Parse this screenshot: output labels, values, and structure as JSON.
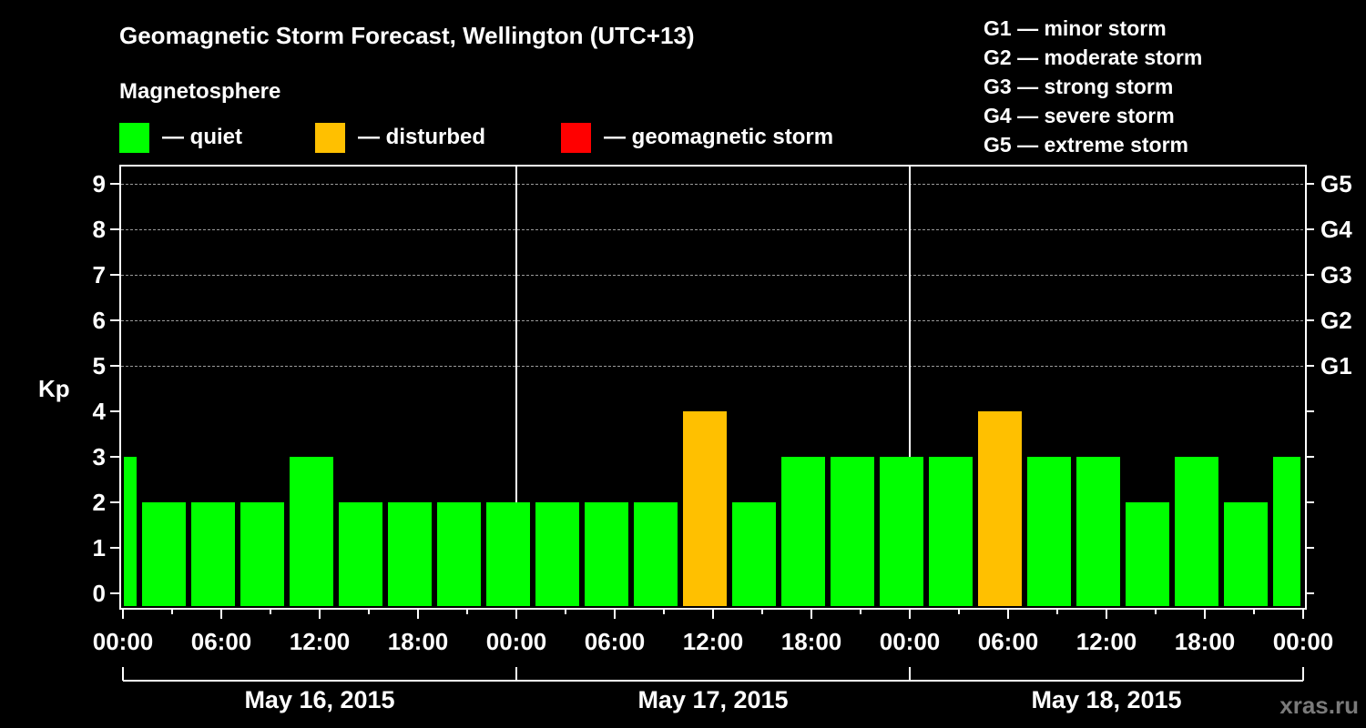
{
  "title": "Geomagnetic Storm Forecast, Wellington (UTC+13)",
  "subtitle": "Magnetosphere",
  "legend": [
    {
      "label": "— quiet",
      "color": "#00ff00",
      "x": 131
    },
    {
      "label": "— disturbed",
      "color": "#ffc000",
      "x": 346
    },
    {
      "label": "— geomagnetic storm",
      "color": "#ff0000",
      "x": 616
    }
  ],
  "g_legend": [
    "G1 — minor storm",
    "G2 — moderate storm",
    "G3 — strong storm",
    "G4 — severe storm",
    "G5 — extreme storm"
  ],
  "y_axis_label": "Kp",
  "watermark": "xras.ru",
  "colors": {
    "quiet": "#00ff00",
    "disturbed": "#ffc000",
    "storm": "#ff0000",
    "background": "#000000",
    "grid": "#9a9a9a"
  },
  "chart_data": {
    "type": "bar",
    "title": "Geomagnetic Storm Forecast, Wellington (UTC+13)",
    "xlabel": "",
    "ylabel": "Kp",
    "ylim": [
      0,
      9
    ],
    "y_ticks": [
      0,
      1,
      2,
      3,
      4,
      5,
      6,
      7,
      8,
      9
    ],
    "right_axis_labels": [
      {
        "kp": 5,
        "label": "G1"
      },
      {
        "kp": 6,
        "label": "G2"
      },
      {
        "kp": 7,
        "label": "G3"
      },
      {
        "kp": 8,
        "label": "G4"
      },
      {
        "kp": 9,
        "label": "G5"
      }
    ],
    "grid": "dashed horizontal lines at Kp 5-9",
    "x_tick_labels": [
      "00:00",
      "06:00",
      "12:00",
      "18:00",
      "00:00",
      "06:00",
      "12:00",
      "18:00",
      "00:00",
      "06:00",
      "12:00",
      "18:00",
      "00:00"
    ],
    "dates": [
      "May 16, 2015",
      "May 17, 2015",
      "May 18, 2015"
    ],
    "bar_interval_hours": 3,
    "categories": [
      "May 16 00:00",
      "May 16 03:00",
      "May 16 06:00",
      "May 16 09:00",
      "May 16 12:00",
      "May 16 15:00",
      "May 16 18:00",
      "May 16 21:00",
      "May 17 00:00",
      "May 17 03:00",
      "May 17 06:00",
      "May 17 09:00",
      "May 17 12:00",
      "May 17 15:00",
      "May 17 18:00",
      "May 17 21:00",
      "May 18 00:00",
      "May 18 03:00",
      "May 18 06:00",
      "May 18 09:00",
      "May 18 12:00",
      "May 18 15:00",
      "May 18 18:00",
      "May 18 21:00",
      "May 19 00:00"
    ],
    "values": [
      3,
      2,
      2,
      2,
      3,
      2,
      2,
      2,
      2,
      2,
      2,
      2,
      4,
      2,
      3,
      3,
      3,
      3,
      4,
      3,
      3,
      2,
      3,
      2,
      3
    ],
    "status": [
      "quiet",
      "quiet",
      "quiet",
      "quiet",
      "quiet",
      "quiet",
      "quiet",
      "quiet",
      "quiet",
      "quiet",
      "quiet",
      "quiet",
      "disturbed",
      "quiet",
      "quiet",
      "quiet",
      "quiet",
      "quiet",
      "disturbed",
      "quiet",
      "quiet",
      "quiet",
      "quiet",
      "quiet",
      "quiet"
    ]
  }
}
